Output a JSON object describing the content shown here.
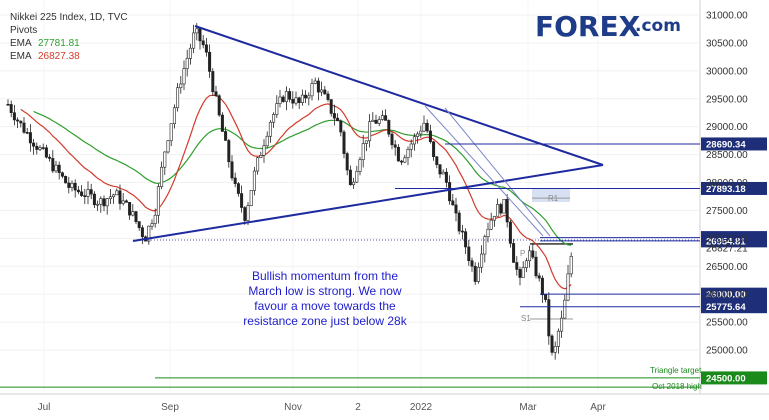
{
  "header": {
    "title": "Nikkei 225 Index, 1D, TVC",
    "pivots": "Pivots",
    "ema_fast_label": "EMA",
    "ema_fast_value": "27781.81",
    "ema_slow_label": "EMA",
    "ema_slow_value": "26827.38"
  },
  "logo": {
    "main": "FOREX",
    "suffix": ".com"
  },
  "annotation": [
    "Bullish momentum from the",
    "March low is strong. We now",
    "favour a move towards the",
    "resistance zone just below 28k"
  ],
  "colors": {
    "up": "#1a1a1a",
    "down": "#1a1a1a",
    "ema_fast": "#2e9e2e",
    "ema_slow": "#d23b2b",
    "trend": "#1e2aa0",
    "label_bg": "#1e2e78",
    "target": "#1a8a1a"
  },
  "chart_data": {
    "type": "candlestick",
    "title": "Nikkei 225 Index, 1D, TVC",
    "x_ticks": [
      "Jul",
      "Sep",
      "Nov",
      "2",
      "2022",
      "Mar",
      "Apr"
    ],
    "y_ticks": [
      31000,
      30500,
      30000,
      29500,
      29000,
      28500,
      28000,
      27500,
      27000,
      26500,
      26000,
      25500,
      25000
    ],
    "ylim": [
      24300,
      31150
    ],
    "level_labels": [
      {
        "value": 28690.34,
        "label": "28690.34",
        "style": "blue"
      },
      {
        "value": 27893.18,
        "label": "27893.18",
        "style": "blue"
      },
      {
        "value": 27013.26,
        "label": "27013.26",
        "style": "blue"
      },
      {
        "value": 26954.81,
        "label": "26954.81",
        "style": "blue"
      },
      {
        "value": 26827.21,
        "label": "26827.21",
        "style": "plain"
      },
      {
        "value": 26000.0,
        "label": "26000.00",
        "style": "blue"
      },
      {
        "value": 25775.64,
        "label": "25775.64",
        "style": "blue"
      },
      {
        "value": 24500.0,
        "label": "24500.00",
        "style": "green"
      }
    ],
    "annotations": [
      "Triangle target",
      "Oct 2018 high",
      "R1",
      "P",
      "S1"
    ],
    "triangle": {
      "upper": [
        {
          "date": "Sep 14",
          "y": 30800
        },
        {
          "date": "Apr 3",
          "y": 28250
        }
      ],
      "lower": [
        {
          "date": "Aug 20",
          "y": 26950
        },
        {
          "date": "Apr 3",
          "y": 28250
        }
      ]
    },
    "pivots": {
      "R1": 27720,
      "P": 26900,
      "S1": 25555
    },
    "ema_fast_last": 27781.81,
    "ema_slow_last": 26827.38,
    "ohlc_note": "Daily candles Jul 2021 - Mar 2022; swing high ~30800 (Sep), low ~24700 (Mar)"
  }
}
